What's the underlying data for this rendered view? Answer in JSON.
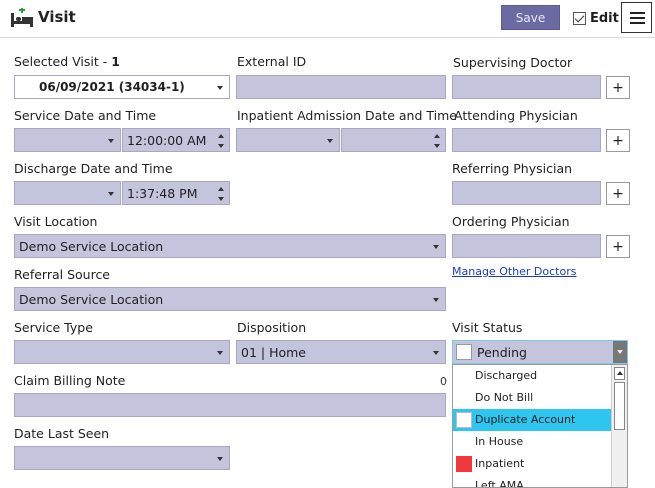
{
  "header": {
    "title": "Visit",
    "save_label": "Save",
    "edit_label": "Edit",
    "edit_checked": true
  },
  "selected_visit": {
    "label": "Selected Visit -",
    "count": "1",
    "value": "06/09/2021 (34034-1)"
  },
  "external_id": {
    "label": "External ID",
    "value": ""
  },
  "supervising_doctor": {
    "label": "Supervising Doctor",
    "value": ""
  },
  "service_datetime": {
    "label": "Service Date and Time",
    "date": "",
    "time": "12:00:00 AM"
  },
  "inpatient_admission": {
    "label": "Inpatient Admission Date and Time",
    "date": "",
    "time": ""
  },
  "attending_physician": {
    "label": "Attending Physician",
    "value": ""
  },
  "discharge_datetime": {
    "label": "Discharge Date and Time",
    "date": "",
    "time": "1:37:48 PM"
  },
  "referring_physician": {
    "label": "Referring Physician",
    "value": ""
  },
  "visit_location": {
    "label": "Visit Location",
    "value": "Demo Service Location"
  },
  "ordering_physician": {
    "label": "Ordering Physician",
    "value": ""
  },
  "manage_other_doctors": "Manage Other Doctors",
  "referral_source": {
    "label": "Referral Source",
    "value": "Demo Service Location"
  },
  "service_type": {
    "label": "Service Type",
    "value": ""
  },
  "disposition": {
    "label": "Disposition",
    "value": "01 | Home"
  },
  "visit_status": {
    "label": "Visit Status",
    "value": "Pending",
    "options": [
      {
        "label": "Discharged",
        "swatch": ""
      },
      {
        "label": "Do Not Bill",
        "swatch": ""
      },
      {
        "label": "Duplicate Account",
        "swatch": "#ffffff",
        "selected": true
      },
      {
        "label": "In House",
        "swatch": ""
      },
      {
        "label": "Inpatient",
        "swatch": "#f03a3a"
      },
      {
        "label": "Left AMA",
        "swatch": ""
      }
    ]
  },
  "claim_billing_note": {
    "label": "Claim Billing Note",
    "char_count": "0",
    "value": ""
  },
  "date_last_seen": {
    "label": "Date Last Seen",
    "value": ""
  },
  "colors": {
    "field_bg": "#c5c4dd",
    "save_bg": "#6b6aa3",
    "highlight": "#2ec5ee",
    "link": "#1a3cc4"
  },
  "icons": {
    "header": "hospital-bed-icon",
    "menu": "hamburger-menu-icon",
    "plus": "plus-icon"
  }
}
